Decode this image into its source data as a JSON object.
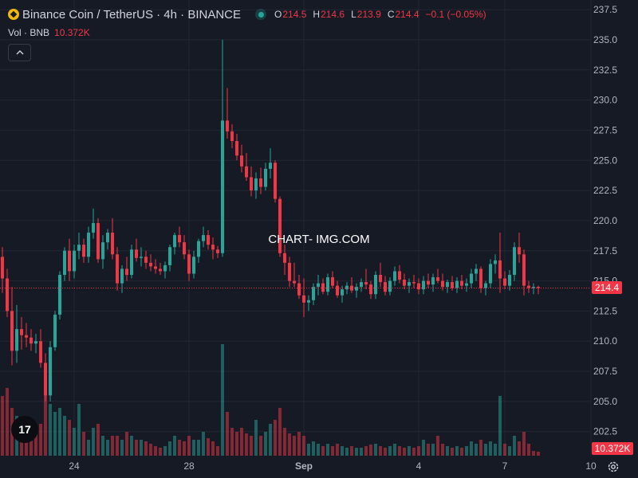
{
  "header": {
    "symbol": "Binance Coin / TetherUS · 4h · BINANCE",
    "open_label": "O",
    "open": "214.5",
    "high_label": "H",
    "high": "214.6",
    "low_label": "L",
    "low": "213.9",
    "close_label": "C",
    "close": "214.4",
    "change": "−0.1 (−0.05%)"
  },
  "volume_legend": {
    "label": "Vol · BNB",
    "value": "10.372K"
  },
  "watermark": "CHART- IMG.COM",
  "price_badge": "214.4",
  "volume_badge": "10.372K",
  "colors": {
    "up": "#26a69a",
    "down": "#f23645",
    "background": "#161a25",
    "grid": "#232733"
  },
  "chart_data": {
    "type": "candlestick",
    "interval": "4h",
    "y_axis": {
      "min": 200.5,
      "max": 238.3,
      "ticks": [
        202.5,
        205.0,
        207.5,
        210.0,
        212.5,
        215.0,
        217.5,
        220.0,
        222.5,
        225.0,
        227.5,
        230.0,
        232.5,
        235.0,
        237.5
      ],
      "side": "right"
    },
    "x_axis": {
      "tick_labels": [
        "24",
        "28",
        "Sep",
        "4",
        "7",
        "10"
      ],
      "tick_index": [
        15,
        39,
        63,
        87,
        105,
        123
      ]
    },
    "last_price": 214.4,
    "candles": [
      [
        217.0,
        217.8,
        214.0,
        215.2
      ],
      [
        215.2,
        216.0,
        212.0,
        212.5
      ],
      [
        212.5,
        214.5,
        208.0,
        209.2
      ],
      [
        209.2,
        213.0,
        208.2,
        211.0
      ],
      [
        211.0,
        212.0,
        209.3,
        210.5
      ],
      [
        210.5,
        211.5,
        209.5,
        210.3
      ],
      [
        210.3,
        211.0,
        209.2,
        209.8
      ],
      [
        209.8,
        210.6,
        209.0,
        210.0
      ],
      [
        210.0,
        211.0,
        207.8,
        208.2
      ],
      [
        208.2,
        209.0,
        205.0,
        205.5
      ],
      [
        205.5,
        210.0,
        205.0,
        209.5
      ],
      [
        209.5,
        212.5,
        209.2,
        212.2
      ],
      [
        212.2,
        215.8,
        211.8,
        215.5
      ],
      [
        215.5,
        217.8,
        215.0,
        217.5
      ],
      [
        217.5,
        218.5,
        215.0,
        215.8
      ],
      [
        215.8,
        218.0,
        215.2,
        217.5
      ],
      [
        217.5,
        219.0,
        216.8,
        218.0
      ],
      [
        218.0,
        218.5,
        216.5,
        217.0
      ],
      [
        217.0,
        219.5,
        216.5,
        219.0
      ],
      [
        219.0,
        221.0,
        218.5,
        219.8
      ],
      [
        219.8,
        220.2,
        216.5,
        216.8
      ],
      [
        216.8,
        218.8,
        216.0,
        218.2
      ],
      [
        218.2,
        219.3,
        217.6,
        219.0
      ],
      [
        219.0,
        220.2,
        216.8,
        217.2
      ],
      [
        217.2,
        217.8,
        214.2,
        214.8
      ],
      [
        214.8,
        216.3,
        214.0,
        216.0
      ],
      [
        216.0,
        217.0,
        215.0,
        215.5
      ],
      [
        215.5,
        218.0,
        215.2,
        217.6
      ],
      [
        217.6,
        218.5,
        216.6,
        216.9
      ],
      [
        216.9,
        217.8,
        216.2,
        217.0
      ],
      [
        217.0,
        217.5,
        216.0,
        216.5
      ],
      [
        216.5,
        217.2,
        215.8,
        216.2
      ],
      [
        216.2,
        216.8,
        215.6,
        216.0
      ],
      [
        216.0,
        216.5,
        215.5,
        215.8
      ],
      [
        215.8,
        216.6,
        215.2,
        216.3
      ],
      [
        216.3,
        218.0,
        215.8,
        217.8
      ],
      [
        217.8,
        219.0,
        217.2,
        218.8
      ],
      [
        218.8,
        219.5,
        217.8,
        218.2
      ],
      [
        218.2,
        218.8,
        216.8,
        217.2
      ],
      [
        217.2,
        217.6,
        215.0,
        215.6
      ],
      [
        215.6,
        217.5,
        215.2,
        217.0
      ],
      [
        217.0,
        218.5,
        216.5,
        218.3
      ],
      [
        218.3,
        219.5,
        217.8,
        218.8
      ],
      [
        218.8,
        219.2,
        217.6,
        218.0
      ],
      [
        218.0,
        218.6,
        216.8,
        217.6
      ],
      [
        217.6,
        217.9,
        216.9,
        217.3
      ],
      [
        217.3,
        235.0,
        217.0,
        228.3
      ],
      [
        228.3,
        231.0,
        226.8,
        227.4
      ],
      [
        227.4,
        228.0,
        226.0,
        226.6
      ],
      [
        226.6,
        227.2,
        225.0,
        225.4
      ],
      [
        225.4,
        226.3,
        224.0,
        224.5
      ],
      [
        224.5,
        225.6,
        223.3,
        223.6
      ],
      [
        223.6,
        224.5,
        222.0,
        222.5
      ],
      [
        222.5,
        224.0,
        221.8,
        223.5
      ],
      [
        223.5,
        224.4,
        222.2,
        222.8
      ],
      [
        222.8,
        224.8,
        222.5,
        224.3
      ],
      [
        224.3,
        226.0,
        223.5,
        224.8
      ],
      [
        224.8,
        225.0,
        221.5,
        221.8
      ],
      [
        221.8,
        222.0,
        217.0,
        217.3
      ],
      [
        217.3,
        218.0,
        215.5,
        216.5
      ],
      [
        216.5,
        217.0,
        214.5,
        215.0
      ],
      [
        215.0,
        216.5,
        214.5,
        214.8
      ],
      [
        214.8,
        215.5,
        213.5,
        213.8
      ],
      [
        213.8,
        215.2,
        212.0,
        213.2
      ],
      [
        213.2,
        213.8,
        212.5,
        213.4
      ],
      [
        213.4,
        214.8,
        213.0,
        214.5
      ],
      [
        214.5,
        215.5,
        213.8,
        214.8
      ],
      [
        214.8,
        215.2,
        213.9,
        214.1
      ],
      [
        214.1,
        215.6,
        213.8,
        215.3
      ],
      [
        215.3,
        215.8,
        214.4,
        214.6
      ],
      [
        214.6,
        215.0,
        213.6,
        213.8
      ],
      [
        213.8,
        214.6,
        213.2,
        214.3
      ],
      [
        214.3,
        214.9,
        213.9,
        214.6
      ],
      [
        214.6,
        215.3,
        214.0,
        214.2
      ],
      [
        214.2,
        214.8,
        213.6,
        214.5
      ],
      [
        214.5,
        215.2,
        214.1,
        214.9
      ],
      [
        214.9,
        216.0,
        214.3,
        214.7
      ],
      [
        214.7,
        215.0,
        213.5,
        213.9
      ],
      [
        213.9,
        215.8,
        213.5,
        215.5
      ],
      [
        215.5,
        216.5,
        214.5,
        214.9
      ],
      [
        214.9,
        215.4,
        213.8,
        214.1
      ],
      [
        214.1,
        215.3,
        213.8,
        215.0
      ],
      [
        215.0,
        216.2,
        214.6,
        215.8
      ],
      [
        215.8,
        216.3,
        214.8,
        215.1
      ],
      [
        215.1,
        215.6,
        214.3,
        214.6
      ],
      [
        214.6,
        215.2,
        214.0,
        214.9
      ],
      [
        214.9,
        215.5,
        214.4,
        214.8
      ],
      [
        214.8,
        215.2,
        213.9,
        214.3
      ],
      [
        214.3,
        215.4,
        213.9,
        215.0
      ],
      [
        215.0,
        215.6,
        214.4,
        214.7
      ],
      [
        214.7,
        215.6,
        214.1,
        215.3
      ],
      [
        215.3,
        216.0,
        214.8,
        215.0
      ],
      [
        215.0,
        215.6,
        214.2,
        214.5
      ],
      [
        214.5,
        215.1,
        214.0,
        214.9
      ],
      [
        214.9,
        215.4,
        214.2,
        214.4
      ],
      [
        214.4,
        215.3,
        214.0,
        215.0
      ],
      [
        215.0,
        215.5,
        214.3,
        214.6
      ],
      [
        214.6,
        215.2,
        214.1,
        214.8
      ],
      [
        214.8,
        216.0,
        214.4,
        215.6
      ],
      [
        215.6,
        216.4,
        215.0,
        216.0
      ],
      [
        216.0,
        216.2,
        214.0,
        214.4
      ],
      [
        214.4,
        215.0,
        213.8,
        214.8
      ],
      [
        214.8,
        216.8,
        214.4,
        216.4
      ],
      [
        216.4,
        217.2,
        215.6,
        216.7
      ],
      [
        216.7,
        219.0,
        214.0,
        215.2
      ],
      [
        215.2,
        215.8,
        214.3,
        214.6
      ],
      [
        214.6,
        215.9,
        214.2,
        215.5
      ],
      [
        215.5,
        218.2,
        215.0,
        217.8
      ],
      [
        217.8,
        219.0,
        216.5,
        217.2
      ],
      [
        217.2,
        217.6,
        213.8,
        214.6
      ],
      [
        214.6,
        215.0,
        214.0,
        214.4
      ],
      [
        214.4,
        214.8,
        213.9,
        214.5
      ],
      [
        214.5,
        214.6,
        213.9,
        214.4
      ]
    ],
    "volumes": [
      {
        "v": 7.5,
        "up": false
      },
      {
        "v": 8.5,
        "up": false
      },
      {
        "v": 6.0,
        "up": false
      },
      {
        "v": 5.0,
        "up": true
      },
      {
        "v": 4.0,
        "up": false
      },
      {
        "v": 4.5,
        "up": false
      },
      {
        "v": 3.5,
        "up": false
      },
      {
        "v": 3.0,
        "up": false
      },
      {
        "v": 4.0,
        "up": false
      },
      {
        "v": 9.0,
        "up": false
      },
      {
        "v": 6.5,
        "up": true
      },
      {
        "v": 5.5,
        "up": true
      },
      {
        "v": 6.0,
        "up": true
      },
      {
        "v": 5.0,
        "up": true
      },
      {
        "v": 4.5,
        "up": false
      },
      {
        "v": 3.5,
        "up": true
      },
      {
        "v": 6.5,
        "up": true
      },
      {
        "v": 3.0,
        "up": false
      },
      {
        "v": 2.0,
        "up": true
      },
      {
        "v": 3.5,
        "up": true
      },
      {
        "v": 4.0,
        "up": false
      },
      {
        "v": 2.5,
        "up": true
      },
      {
        "v": 2.0,
        "up": true
      },
      {
        "v": 2.5,
        "up": false
      },
      {
        "v": 2.5,
        "up": false
      },
      {
        "v": 2.0,
        "up": true
      },
      {
        "v": 3.0,
        "up": false
      },
      {
        "v": 2.5,
        "up": true
      },
      {
        "v": 2.0,
        "up": false
      },
      {
        "v": 2.0,
        "up": true
      },
      {
        "v": 1.8,
        "up": false
      },
      {
        "v": 1.5,
        "up": false
      },
      {
        "v": 1.2,
        "up": false
      },
      {
        "v": 1.0,
        "up": false
      },
      {
        "v": 1.2,
        "up": true
      },
      {
        "v": 1.8,
        "up": true
      },
      {
        "v": 2.5,
        "up": true
      },
      {
        "v": 2.0,
        "up": false
      },
      {
        "v": 1.8,
        "up": false
      },
      {
        "v": 2.5,
        "up": false
      },
      {
        "v": 2.0,
        "up": true
      },
      {
        "v": 2.0,
        "up": true
      },
      {
        "v": 3.0,
        "up": true
      },
      {
        "v": 2.2,
        "up": false
      },
      {
        "v": 1.8,
        "up": false
      },
      {
        "v": 1.2,
        "up": false
      },
      {
        "v": 14.0,
        "up": true
      },
      {
        "v": 5.5,
        "up": false
      },
      {
        "v": 3.5,
        "up": false
      },
      {
        "v": 3.0,
        "up": false
      },
      {
        "v": 3.5,
        "up": false
      },
      {
        "v": 2.8,
        "up": false
      },
      {
        "v": 2.5,
        "up": false
      },
      {
        "v": 4.5,
        "up": true
      },
      {
        "v": 2.5,
        "up": false
      },
      {
        "v": 3.0,
        "up": true
      },
      {
        "v": 4.0,
        "up": true
      },
      {
        "v": 4.5,
        "up": false
      },
      {
        "v": 6.0,
        "up": false
      },
      {
        "v": 3.5,
        "up": false
      },
      {
        "v": 2.8,
        "up": false
      },
      {
        "v": 2.5,
        "up": false
      },
      {
        "v": 3.0,
        "up": false
      },
      {
        "v": 2.5,
        "up": false
      },
      {
        "v": 1.5,
        "up": true
      },
      {
        "v": 1.8,
        "up": true
      },
      {
        "v": 1.5,
        "up": true
      },
      {
        "v": 1.2,
        "up": false
      },
      {
        "v": 1.5,
        "up": true
      },
      {
        "v": 1.2,
        "up": false
      },
      {
        "v": 1.5,
        "up": false
      },
      {
        "v": 1.2,
        "up": true
      },
      {
        "v": 1.0,
        "up": true
      },
      {
        "v": 1.2,
        "up": false
      },
      {
        "v": 1.0,
        "up": true
      },
      {
        "v": 1.0,
        "up": true
      },
      {
        "v": 1.2,
        "up": false
      },
      {
        "v": 1.4,
        "up": false
      },
      {
        "v": 1.5,
        "up": true
      },
      {
        "v": 1.2,
        "up": false
      },
      {
        "v": 1.0,
        "up": false
      },
      {
        "v": 1.2,
        "up": true
      },
      {
        "v": 1.5,
        "up": true
      },
      {
        "v": 1.2,
        "up": false
      },
      {
        "v": 1.0,
        "up": false
      },
      {
        "v": 1.2,
        "up": true
      },
      {
        "v": 1.0,
        "up": false
      },
      {
        "v": 1.2,
        "up": false
      },
      {
        "v": 2.0,
        "up": true
      },
      {
        "v": 1.5,
        "up": false
      },
      {
        "v": 1.5,
        "up": true
      },
      {
        "v": 2.5,
        "up": false
      },
      {
        "v": 1.5,
        "up": false
      },
      {
        "v": 1.2,
        "up": true
      },
      {
        "v": 1.0,
        "up": false
      },
      {
        "v": 1.2,
        "up": true
      },
      {
        "v": 1.0,
        "up": false
      },
      {
        "v": 1.2,
        "up": true
      },
      {
        "v": 1.8,
        "up": true
      },
      {
        "v": 1.5,
        "up": true
      },
      {
        "v": 2.0,
        "up": false
      },
      {
        "v": 1.5,
        "up": true
      },
      {
        "v": 1.8,
        "up": true
      },
      {
        "v": 1.5,
        "up": true
      },
      {
        "v": 7.5,
        "up": true
      },
      {
        "v": 1.5,
        "up": false
      },
      {
        "v": 1.2,
        "up": true
      },
      {
        "v": 2.5,
        "up": true
      },
      {
        "v": 1.8,
        "up": false
      },
      {
        "v": 3.0,
        "up": false
      },
      {
        "v": 1.5,
        "up": false
      },
      {
        "v": 0.6,
        "up": false
      },
      {
        "v": 0.5,
        "up": false
      }
    ],
    "volume_scale_max": 14.0
  }
}
